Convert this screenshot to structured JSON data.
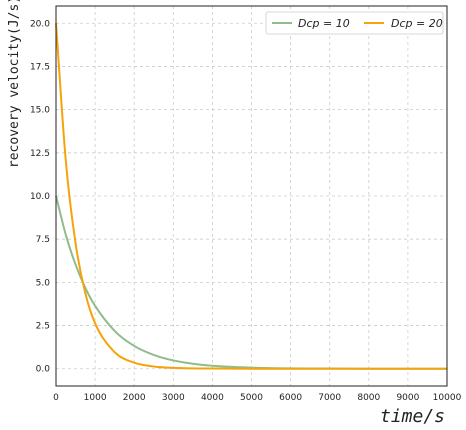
{
  "chart_data": {
    "type": "line",
    "xlabel": "time/s",
    "ylabel": "recovery velocity(J/s)",
    "xlim": [
      0,
      10000
    ],
    "ylim": [
      -1.0,
      21.0
    ],
    "x_ticks": [
      "0",
      "1000",
      "2000",
      "3000",
      "4000",
      "5000",
      "6000",
      "7000",
      "8000",
      "9000",
      "10000"
    ],
    "y_ticks": [
      "0.0",
      "2.5",
      "5.0",
      "7.5",
      "10.0",
      "12.5",
      "15.0",
      "17.5",
      "20.0"
    ],
    "grid": true,
    "legend": {
      "placement": "top-right",
      "columns": 2
    },
    "x": [
      0,
      250,
      500,
      750,
      1000,
      1500,
      2000,
      2500,
      3000,
      3500,
      4000,
      5000,
      6000,
      7000,
      8000,
      9000,
      10000
    ],
    "series": [
      {
        "name": "Dcp = 10",
        "color": "#8fbc8a",
        "values": [
          10.0,
          7.76,
          6.03,
          4.68,
          3.64,
          2.19,
          1.32,
          0.8,
          0.48,
          0.29,
          0.17,
          0.06,
          0.02,
          0.01,
          0.0,
          0.0,
          0.0
        ]
      },
      {
        "name": "Dcp = 20",
        "color": "#f5a30a",
        "values": [
          20.0,
          12.05,
          7.26,
          4.37,
          2.63,
          0.96,
          0.35,
          0.13,
          0.05,
          0.02,
          0.01,
          0.0,
          0.0,
          0.0,
          0.0,
          0.0,
          0.0
        ]
      }
    ]
  }
}
